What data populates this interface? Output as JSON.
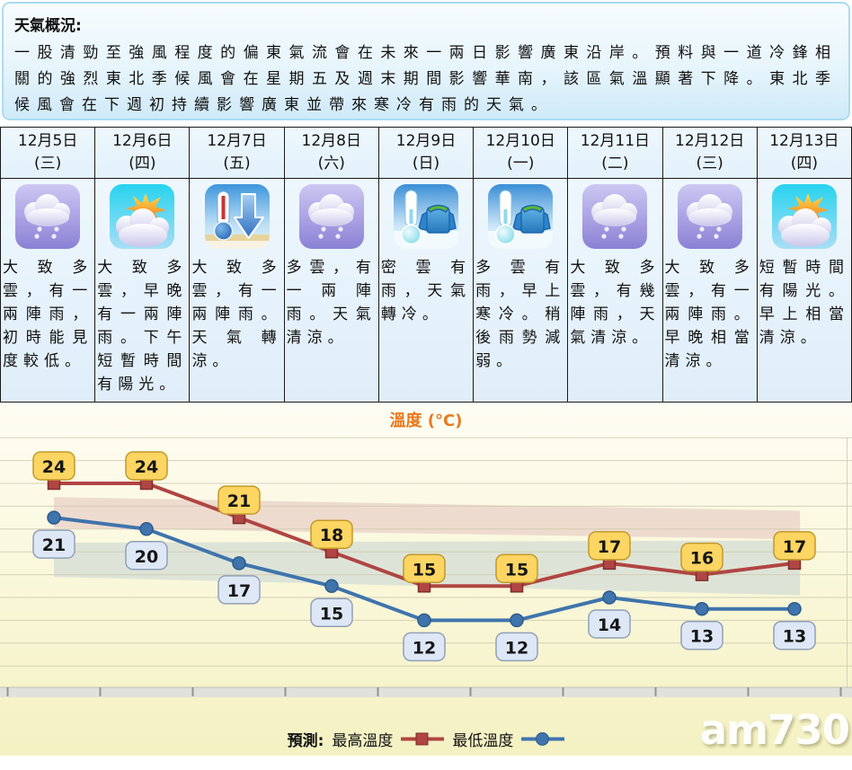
{
  "summary": {
    "title": "天氣概況:",
    "body": "一股清勁至強風程度的偏東氣流會在未來一兩日影響廣東沿岸。預料與一道冷鋒相關的強烈東北季候風會在星期五及週末期間影響華南，該區氣溫顯著下降。東北季候風會在下週初持續影響廣東並帶來寒冷有雨的天氣。"
  },
  "forecast": {
    "days": [
      {
        "date": "12月5日",
        "weekday": "(三)",
        "icon": "rain-cloud-icon",
        "icon_ref": "#icon-rain-cloud",
        "desc": "大致多雲，有一兩陣雨，初時能見度較低。"
      },
      {
        "date": "12月6日",
        "weekday": "(四)",
        "icon": "sun-cloud-icon",
        "icon_ref": "#icon-sun-cloud",
        "desc": "大致多雲，早晚有一兩陣雨。下午短暫時間有陽光。"
      },
      {
        "date": "12月7日",
        "weekday": "(五)",
        "icon": "temp-drop-icon",
        "icon_ref": "#icon-temp-drop",
        "desc": "大致多雲，有一兩陣雨。天氣轉涼。"
      },
      {
        "date": "12月8日",
        "weekday": "(六)",
        "icon": "rain-cloud-icon",
        "icon_ref": "#icon-rain-cloud",
        "desc": "多雲，有一兩陣雨。天氣清涼。"
      },
      {
        "date": "12月9日",
        "weekday": "(日)",
        "icon": "cold-icon",
        "icon_ref": "#icon-cold",
        "desc": "密雲有雨，天氣轉冷。"
      },
      {
        "date": "12月10日",
        "weekday": "(一)",
        "icon": "cold-icon",
        "icon_ref": "#icon-cold",
        "desc": "多雲有雨，早上寒冷。稍後雨勢減弱。"
      },
      {
        "date": "12月11日",
        "weekday": "(二)",
        "icon": "rain-cloud-icon",
        "icon_ref": "#icon-rain-cloud",
        "desc": "大致多雲，有幾陣雨，天氣清涼。"
      },
      {
        "date": "12月12日",
        "weekday": "(三)",
        "icon": "rain-cloud-icon",
        "icon_ref": "#icon-rain-cloud",
        "desc": "大致多雲，有一兩陣雨。早晚相當清涼。"
      },
      {
        "date": "12月13日",
        "weekday": "(四)",
        "icon": "sun-cloud-icon",
        "icon_ref": "#icon-sun-cloud",
        "desc": "短暫時間有陽光。早上相當清涼。"
      }
    ]
  },
  "chart_data": {
    "type": "line",
    "title": "溫度 (°C)",
    "categories": [
      "12月5日",
      "12月6日",
      "12月7日",
      "12月8日",
      "12月9日",
      "12月10日",
      "12月11日",
      "12月12日",
      "12月13日"
    ],
    "series": [
      {
        "name": "最高溫度",
        "values": [
          24,
          24,
          21,
          18,
          15,
          15,
          17,
          16,
          17
        ],
        "color": "#b04543",
        "marker": "square",
        "marker_edge": "#7e2f2c",
        "label_pos": "above",
        "label_bg": "#fcd562",
        "label_border": "#c19a2b"
      },
      {
        "name": "最低溫度",
        "values": [
          21,
          20,
          17,
          15,
          12,
          12,
          14,
          13,
          13
        ],
        "color": "#3f74ad",
        "marker": "circle",
        "marker_edge": "#2d5a8c",
        "label_pos": "below",
        "label_bg": "#dde7f6",
        "label_border": "#91a0b8"
      }
    ],
    "ylim": [
      6,
      28
    ],
    "grid_step": 2,
    "normal_bands": [
      {
        "x": [
          0,
          8.06
        ],
        "top": [
          22.8,
          21.6
        ],
        "bottom": [
          20.1,
          19.1
        ],
        "color": "#ecd7cc"
      },
      {
        "x": [
          0,
          8.06
        ],
        "top": [
          18.8,
          19.0
        ],
        "bottom": [
          15.8,
          14.2
        ],
        "color": "#d9e1d6"
      }
    ],
    "legend": {
      "prefix": "預測:",
      "position": "bottom"
    },
    "grid": true
  },
  "watermark": "am730",
  "colors": {
    "chart_title": "#e8791e",
    "max_line": "#b04543",
    "min_line": "#3f74ad",
    "max_label_bg": "#fcd562",
    "min_label_bg": "#dde7f6",
    "panel_border": "#aadcf1",
    "cell_bg": "#e5f2fb"
  }
}
